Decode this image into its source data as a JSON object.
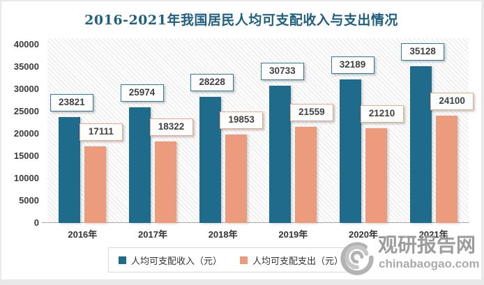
{
  "title": "2016-2021年我国居民人均可支配收入与支出情况",
  "title_color": "#1f5f80",
  "chart_data": {
    "type": "bar",
    "title": "2016-2021年我国居民人均可支配收入与支出情况",
    "categories": [
      "2016年",
      "2017年",
      "2018年",
      "2019年",
      "2020年",
      "2021年"
    ],
    "series": [
      {
        "name": "人均可支配收入（元）",
        "values": [
          23821,
          25974,
          28228,
          30733,
          32189,
          35128
        ],
        "color": "#1f6b8c",
        "label_border": "#2e7a9c"
      },
      {
        "name": "人均可支配支出（元）",
        "values": [
          17111,
          18322,
          19853,
          21559,
          21210,
          24100
        ],
        "color": "#ec9c7d",
        "label_border": "#efa888"
      }
    ],
    "xlabel": "",
    "ylabel": "",
    "ylim": [
      0,
      40000
    ],
    "ytick_step": 5000,
    "yticks": [
      "0",
      "5000",
      "10000",
      "15000",
      "20000",
      "25000",
      "30000",
      "35000",
      "40000"
    ],
    "grid": false,
    "data_labels": true,
    "legend_position": "bottom",
    "plot_background": "diagonal-hatch"
  },
  "legend": {
    "items": [
      {
        "label": "人均可支配收入（元）",
        "color": "#1f6b8c"
      },
      {
        "label": "人均可支配支出（元）",
        "color": "#ec9c7d"
      }
    ]
  },
  "watermark": {
    "site_name": "观研报告网",
    "site_url": "chinabaogao.com"
  }
}
